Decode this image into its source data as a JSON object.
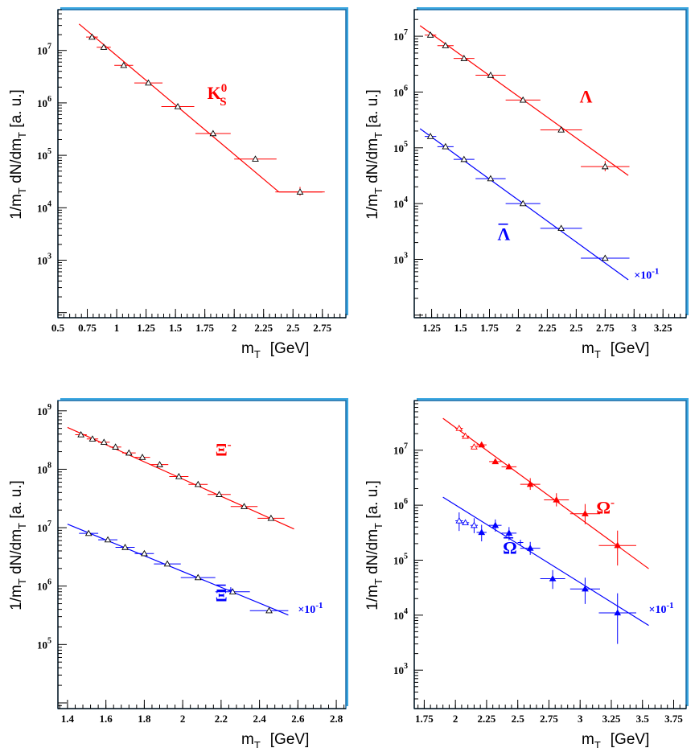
{
  "colors": {
    "red": "#ff0000",
    "blue": "#0000ff",
    "frame": "#3aa6e0",
    "frameDark": "#1c6ea8",
    "points": "#000000"
  },
  "chart_data": [
    {
      "type": "scatter",
      "xlabel_main": "m",
      "xlabel_sub": "T",
      "xlabel_unit": "[GeV]",
      "ylabel": "1/m_T dN/dm_T  [a. u.]",
      "ylabel_parts": {
        "a": "1/m",
        "b": "T",
        "c": " dN/dm",
        "d": "T",
        "e": "  [a. u.]"
      },
      "xlim": [
        0.5,
        2.95
      ],
      "ylim": [
        80,
        60000000.0
      ],
      "log_y": true,
      "x_ticks": [
        0.5,
        0.75,
        1,
        1.25,
        1.5,
        1.75,
        2,
        2.25,
        2.5,
        2.75
      ],
      "x_tick_labels": [
        "0.5",
        "0.75",
        "1",
        "1.25",
        "1.5",
        "1.75",
        "2",
        "2.25",
        "2.5",
        "2.75"
      ],
      "y_ticks": [
        1000,
        10000,
        100000,
        1000000,
        10000000
      ],
      "y_tick_labels": [
        [
          "10",
          "3"
        ],
        [
          "10",
          "4"
        ],
        [
          "10",
          "5"
        ],
        [
          "10",
          "6"
        ],
        [
          "10",
          "7"
        ]
      ],
      "series": [
        {
          "name": "K",
          "name_sup": "0",
          "name_sub": "S",
          "label_at": [
            1.77,
            1200000.0
          ],
          "color": "red",
          "marker": "open",
          "scale_text": "",
          "x": [
            0.79,
            0.89,
            1.06,
            1.27,
            1.52,
            1.82,
            2.18,
            2.56
          ],
          "y": [
            18000000.0,
            11500000.0,
            5200000.0,
            2400000.0,
            850000.0,
            260000.0,
            85000.0,
            20000.0
          ],
          "xerr": [
            0.05,
            0.06,
            0.08,
            0.12,
            0.14,
            0.15,
            0.18,
            0.21
          ],
          "yerr": [
            [
              0,
              0
            ],
            [
              0,
              0
            ],
            [
              0,
              0
            ],
            [
              0,
              0
            ],
            [
              0,
              0
            ],
            [
              0,
              0
            ],
            [
              0,
              0
            ],
            [
              3000,
              5000
            ]
          ],
          "fit": [
            [
              0.68,
              32000000.0
            ],
            [
              2.38,
              20000.0
            ]
          ],
          "fit2": [
            [
              2.38,
              20000.0
            ],
            [
              2.75,
              20000.0
            ]
          ]
        }
      ]
    },
    {
      "type": "scatter",
      "xlabel_main": "m",
      "xlabel_sub": "T",
      "xlabel_unit": "[GeV]",
      "ylabel": "1/m_T dN/dm_T  [a. u.]",
      "ylabel_parts": {
        "a": "1/m",
        "b": "T",
        "c": " dN/dm",
        "d": "T",
        "e": "  [a. u.]"
      },
      "xlim": [
        1.1,
        3.45
      ],
      "ylim": [
        90,
        30000000.0
      ],
      "log_y": true,
      "x_ticks": [
        1.25,
        1.5,
        1.75,
        2,
        2.25,
        2.5,
        2.75,
        3,
        3.25
      ],
      "x_tick_labels": [
        "1.25",
        "1.5",
        "1.75",
        "2",
        "2.25",
        "2.5",
        "2.75",
        "3",
        "3.25"
      ],
      "y_ticks": [
        1000,
        10000,
        100000,
        1000000,
        10000000
      ],
      "y_tick_labels": [
        [
          "10",
          "3"
        ],
        [
          "10",
          "4"
        ],
        [
          "10",
          "5"
        ],
        [
          "10",
          "6"
        ],
        [
          "10",
          "7"
        ]
      ],
      "series": [
        {
          "name": "Λ",
          "name_sup": "",
          "name_sub": "",
          "label_at": [
            2.53,
            650000.0
          ],
          "color": "red",
          "marker": "open",
          "scale_text": "",
          "x": [
            1.24,
            1.37,
            1.53,
            1.76,
            2.04,
            2.37,
            2.75
          ],
          "y": [
            10500000.0,
            6800000.0,
            4000000.0,
            2000000.0,
            720000.0,
            210000.0,
            46000.0
          ],
          "xerr": [
            0.05,
            0.07,
            0.09,
            0.13,
            0.15,
            0.18,
            0.21
          ],
          "yerr": [
            [
              0,
              0
            ],
            [
              0,
              0
            ],
            [
              0,
              0
            ],
            [
              0,
              0
            ],
            [
              0,
              0
            ],
            [
              0,
              0
            ],
            [
              8000,
              12000
            ]
          ],
          "fit": [
            [
              1.15,
              15500000.0
            ],
            [
              2.95,
              32000.0
            ]
          ]
        },
        {
          "name": "Λ",
          "name_sup": "",
          "name_sub": "",
          "bar": true,
          "label_at": [
            1.82,
            2200.0
          ],
          "color": "blue",
          "marker": "open",
          "scale_text": "×10",
          "scale_sup": "-1",
          "scale_at": [
            3.0,
            450.0
          ],
          "x": [
            1.24,
            1.37,
            1.53,
            1.76,
            2.04,
            2.37,
            2.75
          ],
          "y": [
            160000.0,
            105000.0,
            62000.0,
            28000.0,
            10000.0,
            3600.0,
            1050.0
          ],
          "xerr": [
            0.05,
            0.07,
            0.09,
            0.13,
            0.15,
            0.18,
            0.21
          ],
          "yerr": [
            [
              0,
              0
            ],
            [
              0,
              0
            ],
            [
              0,
              0
            ],
            [
              0,
              0
            ],
            [
              0,
              0
            ],
            [
              0,
              0
            ],
            [
              0,
              0
            ]
          ],
          "fit": [
            [
              1.15,
              220000.0
            ],
            [
              2.95,
              430.0
            ]
          ]
        }
      ]
    },
    {
      "type": "scatter",
      "xlabel_main": "m",
      "xlabel_sub": "T",
      "xlabel_unit": "[GeV]",
      "ylabel": "1/m_T dN/dm_T  [a. u.]",
      "ylabel_parts": {
        "a": "1/m",
        "b": "T",
        "c": " dN/dm",
        "d": "T",
        "e": "  [a. u.]"
      },
      "xlim": [
        1.35,
        2.85
      ],
      "ylim": [
        8000,
        1500000000.0
      ],
      "log_y": true,
      "x_ticks": [
        1.4,
        1.6,
        1.8,
        2,
        2.2,
        2.4,
        2.6,
        2.8
      ],
      "x_tick_labels": [
        "1.4",
        "1.6",
        "1.8",
        "2",
        "2.2",
        "2.4",
        "2.6",
        "2.8"
      ],
      "y_ticks": [
        100000,
        1000000,
        10000000,
        100000000,
        1000000000
      ],
      "y_tick_labels": [
        [
          "10",
          "5"
        ],
        [
          "10",
          "6"
        ],
        [
          "10",
          "7"
        ],
        [
          "10",
          "8"
        ],
        [
          "10",
          "9"
        ]
      ],
      "series": [
        {
          "name": "Ξ",
          "name_sup": "-",
          "name_sub": "",
          "label_at": [
            2.17,
            170000000.0
          ],
          "color": "red",
          "marker": "open",
          "scale_text": "",
          "x": [
            1.47,
            1.53,
            1.59,
            1.65,
            1.72,
            1.79,
            1.88,
            1.98,
            2.08,
            2.19,
            2.32,
            2.46
          ],
          "y": [
            390000000.0,
            330000000.0,
            290000000.0,
            240000000.0,
            190000000.0,
            160000000.0,
            120000000.0,
            75000000.0,
            55000000.0,
            37000000.0,
            23000000.0,
            14500000.0
          ],
          "xerr": [
            0.03,
            0.03,
            0.03,
            0.03,
            0.035,
            0.04,
            0.045,
            0.05,
            0.05,
            0.06,
            0.07,
            0.07
          ],
          "yerr": [
            [
              0,
              0
            ],
            [
              0,
              0
            ],
            [
              0,
              0
            ],
            [
              0,
              0
            ],
            [
              0,
              0
            ],
            [
              0,
              0
            ],
            [
              0,
              0
            ],
            [
              0,
              0
            ],
            [
              0,
              0
            ],
            [
              0,
              0
            ],
            [
              0,
              0
            ],
            [
              0,
              0
            ]
          ],
          "fit": [
            [
              1.4,
              520000000.0
            ],
            [
              2.58,
              9500000.0
            ]
          ]
        },
        {
          "name": "Ξ",
          "name_sup": "+",
          "name_sub": "",
          "bar": true,
          "label_at": [
            2.17,
            550000.0
          ],
          "color": "blue",
          "marker": "open",
          "scale_text": "×10",
          "scale_sup": "-1",
          "scale_at": [
            2.6,
            350000.0
          ],
          "x": [
            1.51,
            1.61,
            1.7,
            1.8,
            1.92,
            2.08,
            2.26,
            2.45
          ],
          "y": [
            8000000.0,
            6200000.0,
            4600000.0,
            3600000.0,
            2400000.0,
            1400000.0,
            800000.0,
            380000.0
          ],
          "xerr": [
            0.05,
            0.05,
            0.05,
            0.05,
            0.07,
            0.09,
            0.09,
            0.1
          ],
          "yerr": [
            [
              0,
              0
            ],
            [
              0,
              0
            ],
            [
              0,
              0
            ],
            [
              0,
              0
            ],
            [
              0,
              0
            ],
            [
              0,
              0
            ],
            [
              0,
              0
            ],
            [
              0,
              0
            ]
          ],
          "fit": [
            [
              1.4,
              11500000.0
            ],
            [
              2.55,
              320000.0
            ]
          ]
        }
      ]
    },
    {
      "type": "scatter",
      "xlabel_main": "m",
      "xlabel_sub": "T",
      "xlabel_unit": "[GeV]",
      "ylabel": "1/m_T dN/dm_T  [a. u.]",
      "ylabel_parts": {
        "a": "1/m",
        "b": "T",
        "c": " dN/dm",
        "d": "T",
        "e": "  [a. u.]"
      },
      "xlim": [
        1.67,
        3.85
      ],
      "ylim": [
        200,
        80000000.0
      ],
      "log_y": true,
      "x_ticks": [
        1.75,
        2,
        2.25,
        2.5,
        2.75,
        3,
        3.25,
        3.5,
        3.75
      ],
      "x_tick_labels": [
        "1.75",
        "2",
        "2.25",
        "2.5",
        "2.75",
        "3",
        "3.25",
        "3.5",
        "3.75"
      ],
      "y_ticks": [
        1000,
        10000,
        100000,
        1000000,
        10000000
      ],
      "y_tick_labels": [
        [
          "10",
          "3"
        ],
        [
          "10",
          "4"
        ],
        [
          "10",
          "5"
        ],
        [
          "10",
          "6"
        ],
        [
          "10",
          "7"
        ]
      ],
      "series": [
        {
          "name": "Ω",
          "name_sup": "-",
          "name_sub": "",
          "label_at": [
            3.13,
            700000.0
          ],
          "color": "red",
          "marker": "mixed",
          "open_count": 3,
          "scale_text": "",
          "x": [
            2.03,
            2.08,
            2.15,
            2.21,
            2.32,
            2.43,
            2.6,
            2.81,
            3.04,
            3.3
          ],
          "y": [
            25000000.0,
            18000000.0,
            11500000.0,
            12500000.0,
            6200000.0,
            5000000.0,
            2400000.0,
            1250000.0,
            700000.0,
            185000.0
          ],
          "xerr": [
            0.03,
            0.03,
            0.03,
            0.04,
            0.05,
            0.06,
            0.08,
            0.1,
            0.12,
            0.15
          ],
          "yerr": [
            [
              0,
              0
            ],
            [
              0,
              0
            ],
            [
              0,
              0
            ],
            [
              0,
              0
            ],
            [
              0,
              0
            ],
            [
              0,
              0
            ],
            [
              500000.0,
              700000.0
            ],
            [
              300000.0,
              400000.0
            ],
            [
              250000.0,
              350000.0
            ],
            [
              105000.0,
              160000.0
            ]
          ],
          "fit": [
            [
              1.9,
              38000000.0
            ],
            [
              3.55,
              70000.0
            ]
          ]
        },
        {
          "name": "Ω",
          "name_sup": "+",
          "name_sub": "",
          "bar": true,
          "label_at": [
            2.38,
            130000.0
          ],
          "color": "blue",
          "marker": "mixed",
          "open_count": 3,
          "scale_text": "×10",
          "scale_sup": "-1",
          "scale_at": [
            3.55,
            11000.0
          ],
          "x": [
            2.03,
            2.08,
            2.15,
            2.21,
            2.32,
            2.43,
            2.6,
            2.78,
            3.04,
            3.3
          ],
          "y": [
            520000.0,
            480000.0,
            430000.0,
            320000.0,
            430000.0,
            310000.0,
            165000.0,
            46000.0,
            30000.0,
            11000.0
          ],
          "xerr": [
            0.03,
            0.03,
            0.03,
            0.04,
            0.05,
            0.06,
            0.08,
            0.1,
            0.12,
            0.15
          ],
          "yerr": [
            [
              180000.0,
              220000.0
            ],
            [
              0,
              0
            ],
            [
              120000.0,
              150000.0
            ],
            [
              100000.0,
              120000.0
            ],
            [
              100000.0,
              120000.0
            ],
            [
              80000.0,
              90000.0
            ],
            [
              40000.0,
              50000.0
            ],
            [
              16000.0,
              20000.0
            ],
            [
              14000.0,
              18000.0
            ],
            [
              8000.0,
              14000.0
            ]
          ],
          "fit": [
            [
              1.9,
              1400000.0
            ],
            [
              3.55,
              6500.0
            ]
          ]
        }
      ]
    }
  ]
}
